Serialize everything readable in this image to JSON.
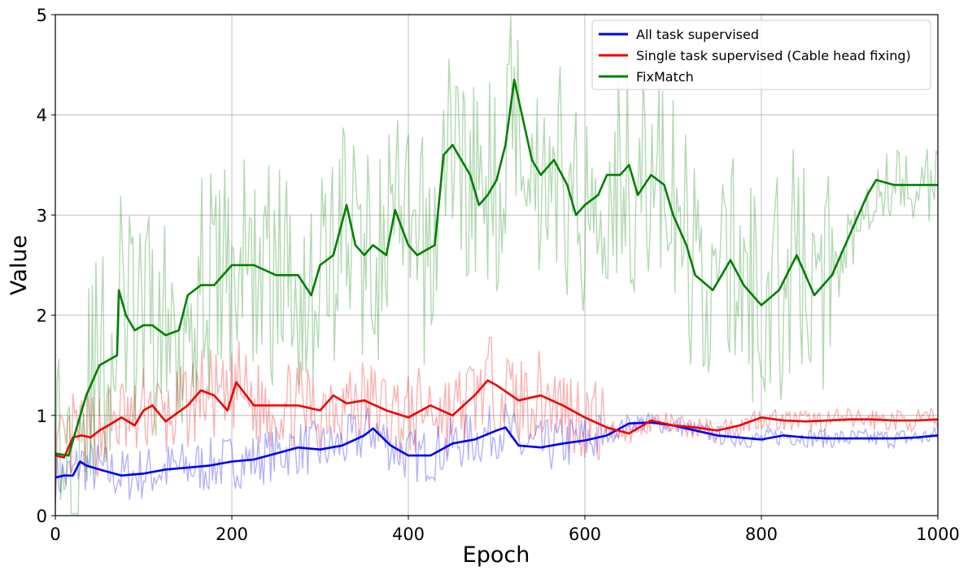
{
  "chart_data": {
    "type": "line",
    "title": "",
    "xlabel": "Epoch",
    "ylabel": "Value",
    "xlim": [
      0,
      1000
    ],
    "ylim": [
      0,
      5
    ],
    "xticks": [
      "0",
      "200",
      "400",
      "600",
      "800",
      "1000"
    ],
    "yticks": [
      "0",
      "1",
      "2",
      "3",
      "4",
      "5"
    ],
    "grid": true,
    "legend_position": "top-right",
    "series": [
      {
        "name": "All task supervised",
        "color": "#0000ee",
        "x": [
          0,
          10,
          20,
          28,
          35,
          50,
          75,
          100,
          125,
          150,
          175,
          200,
          225,
          250,
          275,
          300,
          325,
          350,
          360,
          380,
          400,
          425,
          450,
          475,
          500,
          510,
          525,
          550,
          575,
          600,
          625,
          650,
          675,
          700,
          725,
          750,
          775,
          800,
          825,
          850,
          875,
          900,
          925,
          950,
          975,
          1000
        ],
        "values": [
          0.38,
          0.4,
          0.4,
          0.54,
          0.5,
          0.46,
          0.4,
          0.42,
          0.46,
          0.48,
          0.5,
          0.54,
          0.56,
          0.62,
          0.68,
          0.66,
          0.7,
          0.8,
          0.87,
          0.7,
          0.6,
          0.6,
          0.72,
          0.76,
          0.85,
          0.88,
          0.7,
          0.68,
          0.72,
          0.75,
          0.8,
          0.92,
          0.93,
          0.9,
          0.85,
          0.8,
          0.78,
          0.76,
          0.8,
          0.78,
          0.77,
          0.77,
          0.77,
          0.77,
          0.78,
          0.8
        ]
      },
      {
        "name": "Single task supervised (Cable head fixing)",
        "color": "#ee0000",
        "x": [
          0,
          10,
          20,
          30,
          40,
          50,
          60,
          75,
          90,
          100,
          110,
          125,
          150,
          165,
          180,
          195,
          205,
          225,
          250,
          275,
          300,
          315,
          330,
          350,
          375,
          400,
          425,
          450,
          475,
          490,
          500,
          525,
          550,
          575,
          600,
          625,
          650,
          675,
          700,
          725,
          750,
          775,
          800,
          825,
          850,
          875,
          900,
          925,
          950,
          975,
          1000
        ],
        "values": [
          0.6,
          0.58,
          0.78,
          0.8,
          0.78,
          0.85,
          0.9,
          0.98,
          0.9,
          1.05,
          1.1,
          0.94,
          1.1,
          1.25,
          1.2,
          1.05,
          1.33,
          1.1,
          1.1,
          1.1,
          1.05,
          1.2,
          1.12,
          1.15,
          1.05,
          0.98,
          1.1,
          1.0,
          1.2,
          1.35,
          1.3,
          1.15,
          1.2,
          1.1,
          0.98,
          0.88,
          0.82,
          0.95,
          0.9,
          0.88,
          0.85,
          0.9,
          0.98,
          0.95,
          0.94,
          0.95,
          0.96,
          0.96,
          0.95,
          0.95,
          0.96
        ]
      },
      {
        "name": "FixMatch",
        "color": "#008000",
        "x": [
          0,
          15,
          25,
          35,
          50,
          60,
          70,
          72,
          80,
          90,
          100,
          110,
          125,
          140,
          150,
          165,
          180,
          200,
          225,
          250,
          275,
          290,
          300,
          315,
          330,
          340,
          350,
          360,
          375,
          385,
          400,
          410,
          430,
          440,
          450,
          470,
          480,
          490,
          500,
          510,
          520,
          540,
          550,
          565,
          580,
          590,
          600,
          615,
          625,
          640,
          650,
          660,
          675,
          690,
          700,
          715,
          725,
          745,
          765,
          780,
          800,
          820,
          840,
          860,
          880,
          900,
          920,
          930,
          950,
          975,
          1000
        ],
        "values": [
          0.62,
          0.6,
          0.9,
          1.2,
          1.5,
          1.55,
          1.6,
          2.25,
          2.0,
          1.85,
          1.9,
          1.9,
          1.8,
          1.85,
          2.2,
          2.3,
          2.3,
          2.5,
          2.5,
          2.4,
          2.4,
          2.2,
          2.5,
          2.6,
          3.1,
          2.7,
          2.6,
          2.7,
          2.6,
          3.05,
          2.7,
          2.6,
          2.7,
          3.6,
          3.7,
          3.4,
          3.1,
          3.2,
          3.35,
          3.7,
          4.35,
          3.55,
          3.4,
          3.55,
          3.3,
          3.0,
          3.1,
          3.2,
          3.4,
          3.4,
          3.5,
          3.2,
          3.4,
          3.3,
          3.0,
          2.7,
          2.4,
          2.25,
          2.55,
          2.3,
          2.1,
          2.25,
          2.6,
          2.2,
          2.4,
          2.8,
          3.2,
          3.35,
          3.3,
          3.3,
          3.3
        ]
      }
    ]
  }
}
